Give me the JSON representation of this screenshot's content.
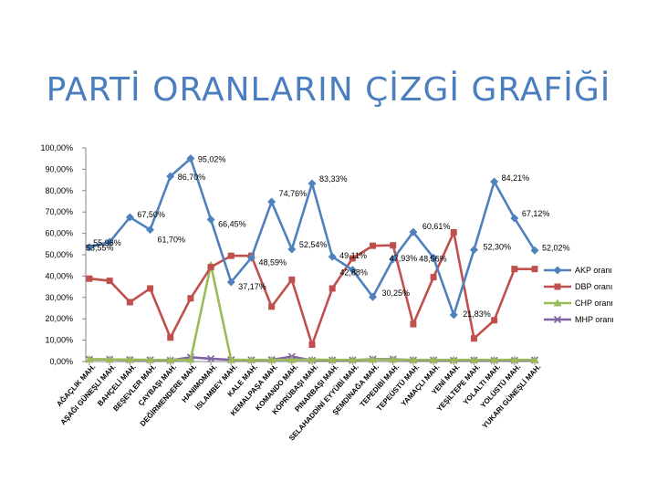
{
  "chart_data": {
    "type": "line",
    "title": "PARTİ ORANLARIN ÇİZGİ GRAFİĞİ",
    "ylim": [
      0,
      100
    ],
    "yticks": [
      "0,00%",
      "10,00%",
      "20,00%",
      "30,00%",
      "40,00%",
      "50,00%",
      "60,00%",
      "70,00%",
      "80,00%",
      "90,00%",
      "100,00%"
    ],
    "grid": false,
    "legend_position": "right",
    "categories": [
      "AĞAÇLIK MAH.",
      "AŞAĞI GÜNEŞLİ MAH.",
      "BAHÇELİ MAH.",
      "BEŞEVLER MAH.",
      "ÇAYBAŞI MAH.",
      "DEĞİRMENDERE MAH.",
      "HANIMOMAH.",
      "İSLAMBEY MAH.",
      "KALE MAH.",
      "KEMALPAŞA MAH.",
      "KOMANDO MAH.",
      "KÖPRÜBAŞI MAH.",
      "PINARBAŞI MAH.",
      "SELAHADDİNİ EYYÜBİ MAH.",
      "ŞEMDİNAĞA MAH.",
      "TEPEDİBİ MAH.",
      "TEPEÜSTÜ MAH.",
      "YAMAÇLI MAH.",
      "YENİ MAH.",
      "YEŞİLTEPE MAH.",
      "YOLALTI MAH.",
      "YOLÜSTÜ MAH.",
      "YUKARI GÜNEŞLİ MAH."
    ],
    "series": [
      {
        "name": "AKP oranı",
        "color": "#4f81bd",
        "marker": "diamond",
        "values": [
          53.55,
          55.96,
          67.5,
          61.7,
          86.7,
          95.02,
          66.45,
          37.17,
          48.59,
          74.76,
          52.54,
          83.33,
          49.11,
          42.88,
          30.25,
          47.93,
          60.61,
          48.56,
          21.83,
          52.3,
          84.21,
          67.12,
          52.02
        ],
        "labels": [
          "53,55%",
          "55,96%",
          "67,50%",
          "61,70%",
          "86,70%",
          "95,02%",
          "66,45%",
          "37,17%",
          "48,59%",
          "74,76%",
          "52,54%",
          "83,33%",
          "49,11%",
          "42,88%",
          "30,25%",
          "47,93%",
          "60,61%",
          "48,56%",
          "21,83%",
          "52,30%",
          "84,21%",
          "67,12%",
          "52,02%"
        ]
      },
      {
        "name": "DBP oranı",
        "color": "#c0504d",
        "marker": "square",
        "values": [
          38.8,
          37.8,
          27.8,
          34.2,
          11.2,
          29.6,
          44.2,
          49.5,
          49.5,
          25.7,
          38.3,
          7.9,
          34.2,
          48.3,
          54.2,
          54.4,
          17.5,
          39.5,
          60.5,
          10.8,
          19.3,
          43.3,
          43.3
        ]
      },
      {
        "name": "CHP oranı",
        "color": "#9bbb59",
        "marker": "triangle",
        "values": [
          1.1,
          1.0,
          0.9,
          0.8,
          0.7,
          0.9,
          45.2,
          0.8,
          0.8,
          0.8,
          0.8,
          0.9,
          0.8,
          0.8,
          0.9,
          0.9,
          0.8,
          0.8,
          0.8,
          0.8,
          0.8,
          0.8,
          0.8
        ]
      },
      {
        "name": "MHP oranı",
        "color": "#8064a2",
        "marker": "x",
        "values": [
          1.0,
          1.0,
          0.8,
          0.7,
          0.5,
          2.0,
          1.3,
          0.8,
          0.7,
          0.8,
          2.3,
          0.5,
          0.6,
          0.6,
          1.1,
          1.1,
          0.6,
          0.6,
          0.5,
          0.6,
          0.5,
          0.5,
          0.6
        ]
      }
    ]
  }
}
